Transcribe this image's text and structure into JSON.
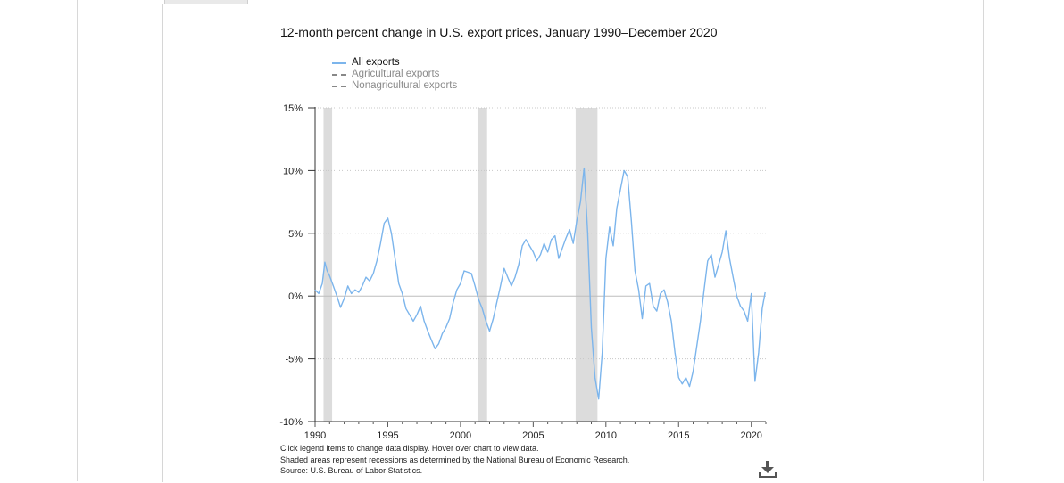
{
  "chart_data": {
    "type": "line",
    "title": "12-month percent change in U.S. export prices, January 1990–December 2020",
    "xlabel": "",
    "ylabel": "",
    "x_range": [
      1990,
      2021
    ],
    "ylim": [
      -10,
      15
    ],
    "y_ticks": [
      "15%",
      "10%",
      "5%",
      "0%",
      "-5%",
      "-10%"
    ],
    "x_ticks": [
      "1990",
      "1995",
      "2000",
      "2005",
      "2010",
      "2015",
      "2020"
    ],
    "grid": true,
    "legend_position": "top-left",
    "recessions": [
      [
        1990.58,
        1991.17
      ],
      [
        2001.17,
        2001.83
      ],
      [
        2007.92,
        2009.42
      ]
    ],
    "series": [
      {
        "name": "All exports",
        "visible": true,
        "color": "#7cb5ec",
        "points": [
          [
            1990.0,
            0.5
          ],
          [
            1990.25,
            0.2
          ],
          [
            1990.5,
            1.0
          ],
          [
            1990.67,
            2.7
          ],
          [
            1990.83,
            2.0
          ],
          [
            1991.0,
            1.6
          ],
          [
            1991.25,
            0.8
          ],
          [
            1991.5,
            0.0
          ],
          [
            1991.75,
            -0.9
          ],
          [
            1992.0,
            -0.2
          ],
          [
            1992.25,
            0.8
          ],
          [
            1992.5,
            0.2
          ],
          [
            1992.75,
            0.5
          ],
          [
            1993.0,
            0.3
          ],
          [
            1993.25,
            0.8
          ],
          [
            1993.5,
            1.5
          ],
          [
            1993.75,
            1.2
          ],
          [
            1994.0,
            1.8
          ],
          [
            1994.25,
            2.8
          ],
          [
            1994.5,
            4.2
          ],
          [
            1994.75,
            5.8
          ],
          [
            1995.0,
            6.2
          ],
          [
            1995.25,
            5.0
          ],
          [
            1995.5,
            3.0
          ],
          [
            1995.75,
            1.0
          ],
          [
            1996.0,
            0.2
          ],
          [
            1996.25,
            -1.0
          ],
          [
            1996.5,
            -1.5
          ],
          [
            1996.75,
            -2.0
          ],
          [
            1997.0,
            -1.5
          ],
          [
            1997.25,
            -0.8
          ],
          [
            1997.5,
            -2.0
          ],
          [
            1997.75,
            -2.8
          ],
          [
            1998.0,
            -3.5
          ],
          [
            1998.25,
            -4.2
          ],
          [
            1998.5,
            -3.8
          ],
          [
            1998.75,
            -3.0
          ],
          [
            1999.0,
            -2.5
          ],
          [
            1999.25,
            -1.8
          ],
          [
            1999.5,
            -0.5
          ],
          [
            1999.75,
            0.5
          ],
          [
            2000.0,
            1.0
          ],
          [
            2000.25,
            2.0
          ],
          [
            2000.5,
            1.9
          ],
          [
            2000.75,
            1.8
          ],
          [
            2001.0,
            0.8
          ],
          [
            2001.25,
            -0.3
          ],
          [
            2001.5,
            -1.0
          ],
          [
            2001.75,
            -2.0
          ],
          [
            2002.0,
            -2.8
          ],
          [
            2002.25,
            -1.8
          ],
          [
            2002.5,
            -0.5
          ],
          [
            2002.75,
            0.8
          ],
          [
            2003.0,
            2.2
          ],
          [
            2003.25,
            1.5
          ],
          [
            2003.5,
            0.8
          ],
          [
            2003.75,
            1.5
          ],
          [
            2004.0,
            2.5
          ],
          [
            2004.25,
            4.0
          ],
          [
            2004.5,
            4.5
          ],
          [
            2004.75,
            4.0
          ],
          [
            2005.0,
            3.5
          ],
          [
            2005.25,
            2.8
          ],
          [
            2005.5,
            3.3
          ],
          [
            2005.75,
            4.2
          ],
          [
            2006.0,
            3.5
          ],
          [
            2006.25,
            4.5
          ],
          [
            2006.5,
            4.8
          ],
          [
            2006.75,
            3.0
          ],
          [
            2007.0,
            3.8
          ],
          [
            2007.25,
            4.6
          ],
          [
            2007.5,
            5.3
          ],
          [
            2007.75,
            4.2
          ],
          [
            2008.0,
            6.0
          ],
          [
            2008.25,
            7.5
          ],
          [
            2008.5,
            10.2
          ],
          [
            2008.75,
            5.0
          ],
          [
            2009.0,
            -2.5
          ],
          [
            2009.25,
            -6.5
          ],
          [
            2009.5,
            -8.2
          ],
          [
            2009.75,
            -4.5
          ],
          [
            2010.0,
            3.0
          ],
          [
            2010.25,
            5.5
          ],
          [
            2010.5,
            4.0
          ],
          [
            2010.75,
            7.0
          ],
          [
            2011.0,
            8.5
          ],
          [
            2011.25,
            10.0
          ],
          [
            2011.5,
            9.5
          ],
          [
            2011.75,
            6.0
          ],
          [
            2012.0,
            2.0
          ],
          [
            2012.25,
            0.5
          ],
          [
            2012.5,
            -1.8
          ],
          [
            2012.75,
            0.8
          ],
          [
            2013.0,
            1.0
          ],
          [
            2013.25,
            -0.8
          ],
          [
            2013.5,
            -1.2
          ],
          [
            2013.75,
            0.2
          ],
          [
            2014.0,
            0.5
          ],
          [
            2014.25,
            -0.5
          ],
          [
            2014.5,
            -2.0
          ],
          [
            2014.75,
            -4.5
          ],
          [
            2015.0,
            -6.5
          ],
          [
            2015.25,
            -7.0
          ],
          [
            2015.5,
            -6.5
          ],
          [
            2015.75,
            -7.2
          ],
          [
            2016.0,
            -6.0
          ],
          [
            2016.25,
            -4.0
          ],
          [
            2016.5,
            -2.0
          ],
          [
            2016.75,
            0.5
          ],
          [
            2017.0,
            2.8
          ],
          [
            2017.25,
            3.3
          ],
          [
            2017.5,
            1.5
          ],
          [
            2017.75,
            2.5
          ],
          [
            2018.0,
            3.5
          ],
          [
            2018.25,
            5.2
          ],
          [
            2018.5,
            3.0
          ],
          [
            2018.75,
            1.5
          ],
          [
            2019.0,
            0.0
          ],
          [
            2019.25,
            -0.8
          ],
          [
            2019.5,
            -1.2
          ],
          [
            2019.75,
            -2.0
          ],
          [
            2020.0,
            0.2
          ],
          [
            2020.25,
            -6.8
          ],
          [
            2020.5,
            -4.5
          ],
          [
            2020.75,
            -1.0
          ],
          [
            2020.95,
            0.3
          ]
        ]
      },
      {
        "name": "Agricultural exports",
        "visible": false,
        "color": "#888888"
      },
      {
        "name": "Nonagricultural exports",
        "visible": false,
        "color": "#888888"
      }
    ]
  },
  "notes": {
    "line1": "Click legend items to change data display. Hover over chart to view data.",
    "line2": "Shaded areas represent recessions as determined by the National Bureau of Economic Research.",
    "line3": "Source: U.S. Bureau of Labor Statistics."
  },
  "icons": {
    "download": "download-icon"
  }
}
